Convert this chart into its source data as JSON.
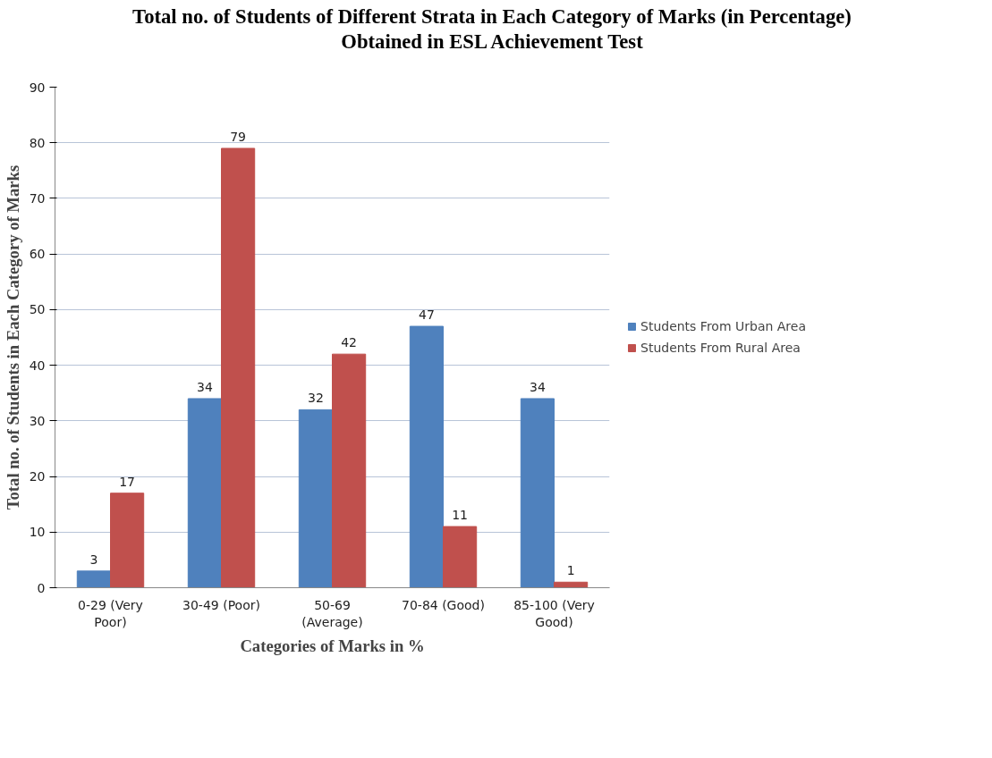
{
  "chart_data": {
    "type": "bar",
    "title": "Total no. of Students of Different Strata in Each Category of Marks (in Percentage)",
    "subtitle": "Obtained in ESL Achievement Test",
    "xlabel": "Categories of Marks in %",
    "ylabel": "Total no. of Students in Each Category of Marks",
    "categories": [
      "0-29 (Very Poor)",
      "30-49 (Poor)",
      "50-69 (Average)",
      "70-84 (Good)",
      "85-100 (Very Good)"
    ],
    "series": [
      {
        "name": "Students From Urban Area",
        "color": "#4f81bd",
        "values": [
          3,
          34,
          32,
          47,
          34
        ]
      },
      {
        "name": "Students From Rural Area",
        "color": "#c0504d",
        "values": [
          17,
          79,
          42,
          11,
          1
        ]
      }
    ],
    "ylim": [
      0,
      90
    ],
    "yticks": [
      0,
      10,
      20,
      30,
      40,
      50,
      60,
      70,
      80,
      90
    ],
    "grid": "y",
    "legend": "right",
    "data_labels": true
  }
}
